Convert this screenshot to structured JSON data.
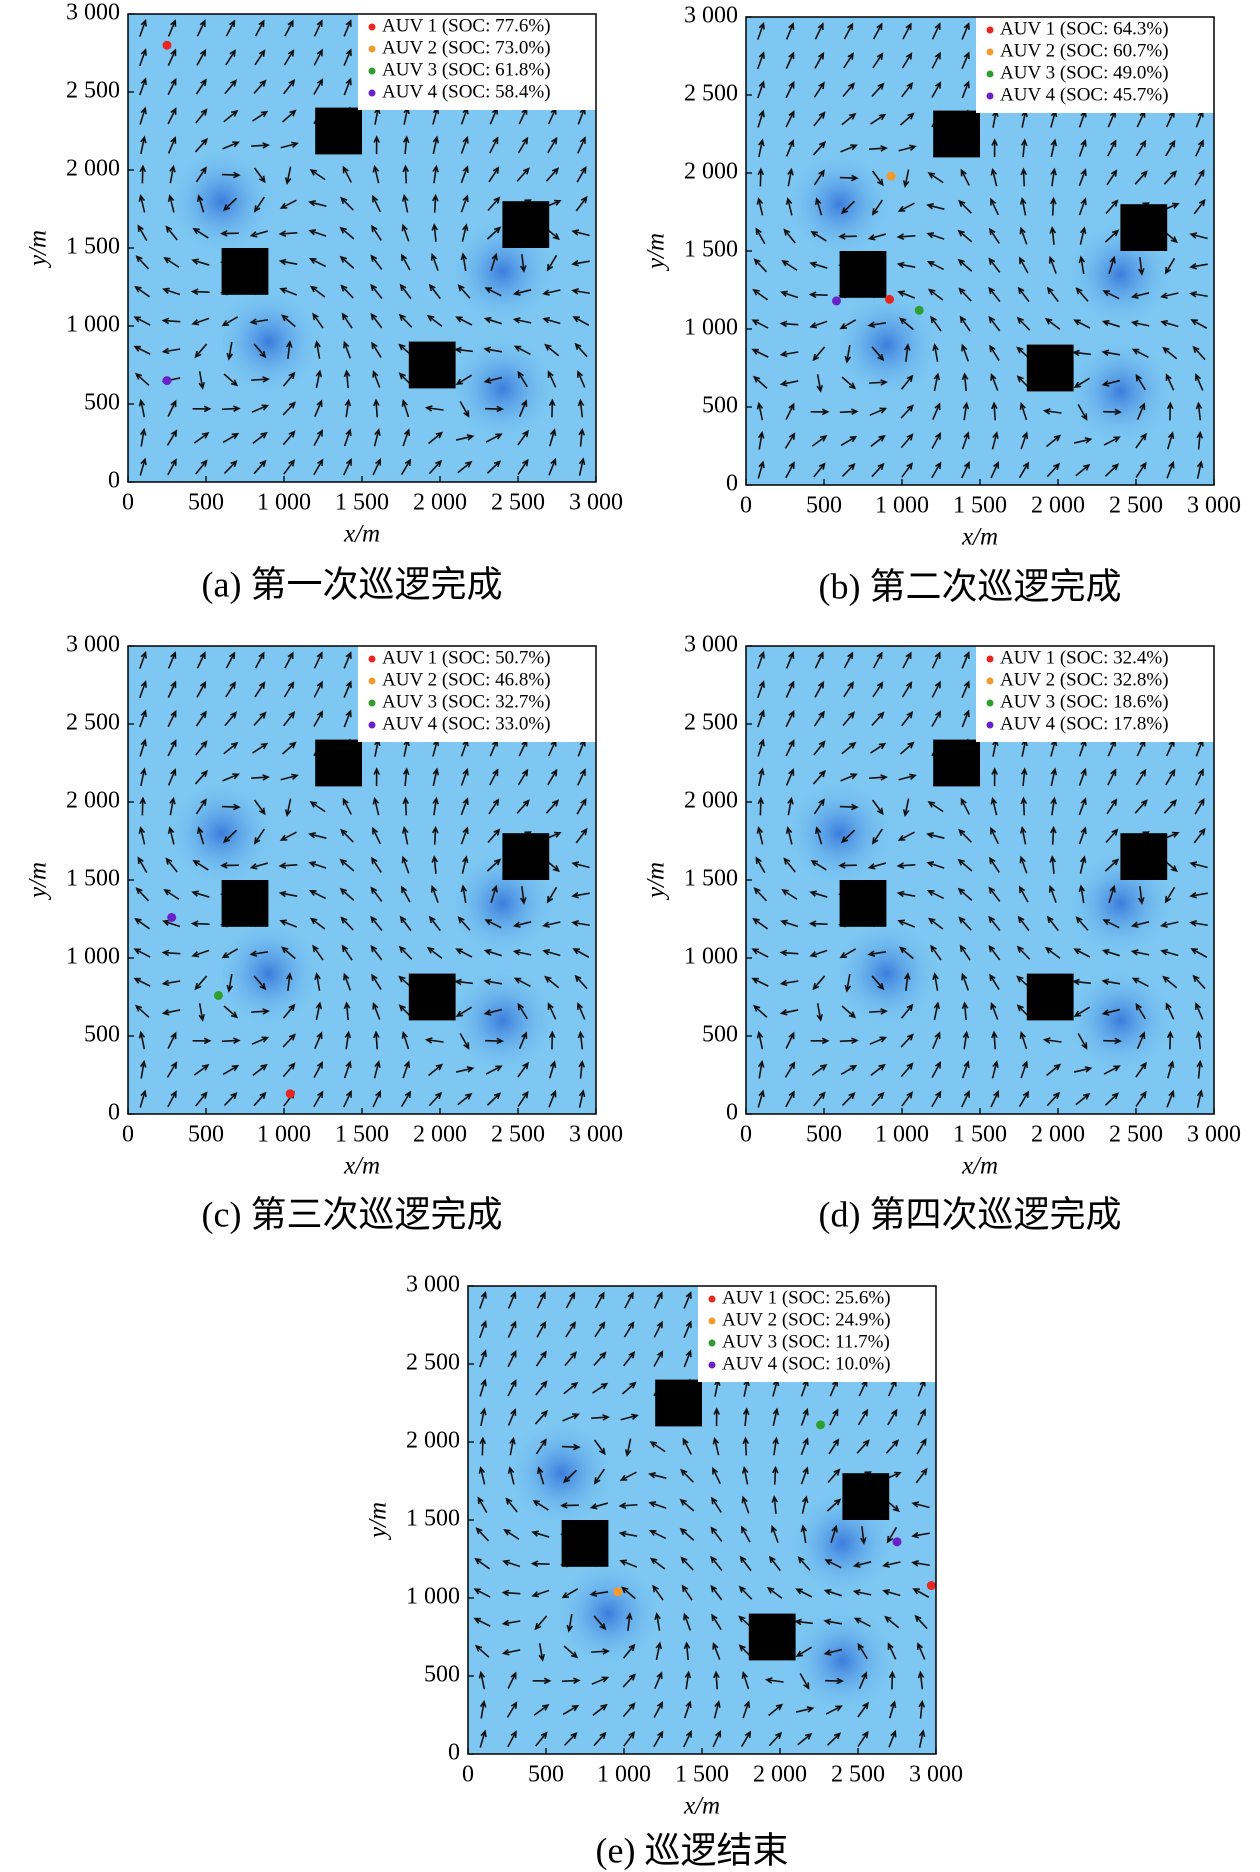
{
  "chart_data": [
    {
      "type": "scatter",
      "caption": "(a) 第一次巡逻完成",
      "xlabel": "x/m",
      "ylabel": "y/m",
      "xlim": [
        0,
        3000
      ],
      "ylim": [
        0,
        3000
      ],
      "xticks": [
        0,
        500,
        {
          "value": 1000,
          "label": "1 000"
        },
        {
          "value": 1500,
          "label": "1 500"
        },
        {
          "value": 2000,
          "label": "2 000"
        },
        {
          "value": 2500,
          "label": "2 500"
        },
        {
          "value": 3000,
          "label": "3 000"
        }
      ],
      "yticks": [
        0,
        500,
        {
          "value": 1000,
          "label": "1 000"
        },
        {
          "value": 1500,
          "label": "1 500"
        },
        {
          "value": 2000,
          "label": "2 000"
        },
        {
          "value": 2500,
          "label": "2 500"
        },
        {
          "value": 3000,
          "label": "3 000"
        }
      ],
      "obstacles": {
        "x": [
          750,
          1350,
          2550,
          1950
        ],
        "y": [
          1350,
          2250,
          1650,
          750
        ]
      },
      "vortices": {
        "x": [
          600,
          900,
          2400,
          2400
        ],
        "y": [
          1800,
          900,
          1350,
          600
        ]
      },
      "series": [
        {
          "name": "AUV 1 (SOC: 77.6%)",
          "color": "#e8261f",
          "x": [
            250
          ],
          "y": [
            2800
          ]
        },
        {
          "name": "AUV 2 (SOC: 73.0%)",
          "color": "#f39a2e",
          "x": [
            null
          ],
          "y": [
            null
          ]
        },
        {
          "name": "AUV 3 (SOC: 61.8%)",
          "color": "#2e9e2e",
          "x": [
            null
          ],
          "y": [
            null
          ]
        },
        {
          "name": "AUV 4 (SOC: 58.4%)",
          "color": "#6a22c8",
          "x": [
            250
          ],
          "y": [
            650
          ]
        }
      ]
    },
    {
      "type": "scatter",
      "caption": "(b) 第二次巡逻完成",
      "xlabel": "x/m",
      "ylabel": "y/m",
      "xlim": [
        0,
        3000
      ],
      "ylim": [
        0,
        3000
      ],
      "xticks": [
        0,
        500,
        {
          "value": 1000,
          "label": "1 000"
        },
        {
          "value": 1500,
          "label": "1 500"
        },
        {
          "value": 2000,
          "label": "2 000"
        },
        {
          "value": 2500,
          "label": "2 500"
        },
        {
          "value": 3000,
          "label": "3 000"
        }
      ],
      "yticks": [
        0,
        500,
        {
          "value": 1000,
          "label": "1 000"
        },
        {
          "value": 1500,
          "label": "1 500"
        },
        {
          "value": 2000,
          "label": "2 000"
        },
        {
          "value": 2500,
          "label": "2 500"
        },
        {
          "value": 3000,
          "label": "3 000"
        }
      ],
      "obstacles": {
        "x": [
          750,
          1350,
          2550,
          1950
        ],
        "y": [
          1350,
          2250,
          1650,
          750
        ]
      },
      "vortices": {
        "x": [
          600,
          900,
          2400,
          2400
        ],
        "y": [
          1800,
          900,
          1350,
          600
        ]
      },
      "series": [
        {
          "name": "AUV 1 (SOC: 64.3%)",
          "color": "#e8261f",
          "x": [
            920
          ],
          "y": [
            1190
          ]
        },
        {
          "name": "AUV 2 (SOC: 60.7%)",
          "color": "#f39a2e",
          "x": [
            930
          ],
          "y": [
            1980
          ]
        },
        {
          "name": "AUV 3 (SOC: 49.0%)",
          "color": "#2e9e2e",
          "x": [
            1110
          ],
          "y": [
            1120
          ]
        },
        {
          "name": "AUV 4 (SOC: 45.7%)",
          "color": "#6a22c8",
          "x": [
            580
          ],
          "y": [
            1180
          ]
        }
      ]
    },
    {
      "type": "scatter",
      "caption": "(c) 第三次巡逻完成",
      "xlabel": "x/m",
      "ylabel": "y/m",
      "xlim": [
        0,
        3000
      ],
      "ylim": [
        0,
        3000
      ],
      "xticks": [
        0,
        500,
        {
          "value": 1000,
          "label": "1 000"
        },
        {
          "value": 1500,
          "label": "1 500"
        },
        {
          "value": 2000,
          "label": "2 000"
        },
        {
          "value": 2500,
          "label": "2 500"
        },
        {
          "value": 3000,
          "label": "3 000"
        }
      ],
      "yticks": [
        0,
        500,
        {
          "value": 1000,
          "label": "1 000"
        },
        {
          "value": 1500,
          "label": "1 500"
        },
        {
          "value": 2000,
          "label": "2 000"
        },
        {
          "value": 2500,
          "label": "2 500"
        },
        {
          "value": 3000,
          "label": "3 000"
        }
      ],
      "obstacles": {
        "x": [
          750,
          1350,
          2550,
          1950
        ],
        "y": [
          1350,
          2250,
          1650,
          750
        ]
      },
      "vortices": {
        "x": [
          600,
          900,
          2400,
          2400
        ],
        "y": [
          1800,
          900,
          1350,
          600
        ]
      },
      "series": [
        {
          "name": "AUV 1 (SOC: 50.7%)",
          "color": "#e8261f",
          "x": [
            1040
          ],
          "y": [
            130
          ]
        },
        {
          "name": "AUV 2 (SOC: 46.8%)",
          "color": "#f39a2e",
          "x": [
            null
          ],
          "y": [
            null
          ]
        },
        {
          "name": "AUV 3 (SOC: 32.7%)",
          "color": "#2e9e2e",
          "x": [
            580
          ],
          "y": [
            760
          ]
        },
        {
          "name": "AUV 4 (SOC: 33.0%)",
          "color": "#6a22c8",
          "x": [
            280
          ],
          "y": [
            1260
          ]
        }
      ]
    },
    {
      "type": "scatter",
      "caption": "(d) 第四次巡逻完成",
      "xlabel": "x/m",
      "ylabel": "y/m",
      "xlim": [
        0,
        3000
      ],
      "ylim": [
        0,
        3000
      ],
      "xticks": [
        0,
        500,
        {
          "value": 1000,
          "label": "1 000"
        },
        {
          "value": 1500,
          "label": "1 500"
        },
        {
          "value": 2000,
          "label": "2 000"
        },
        {
          "value": 2500,
          "label": "2 500"
        },
        {
          "value": 3000,
          "label": "3 000"
        }
      ],
      "yticks": [
        0,
        500,
        {
          "value": 1000,
          "label": "1 000"
        },
        {
          "value": 1500,
          "label": "1 500"
        },
        {
          "value": 2000,
          "label": "2 000"
        },
        {
          "value": 2500,
          "label": "2 500"
        },
        {
          "value": 3000,
          "label": "3 000"
        }
      ],
      "obstacles": {
        "x": [
          750,
          1350,
          2550,
          1950
        ],
        "y": [
          1350,
          2250,
          1650,
          750
        ]
      },
      "vortices": {
        "x": [
          600,
          900,
          2400,
          2400
        ],
        "y": [
          1800,
          900,
          1350,
          600
        ]
      },
      "series": [
        {
          "name": "AUV 1 (SOC: 32.4%)",
          "color": "#e8261f",
          "x": [
            null
          ],
          "y": [
            null
          ]
        },
        {
          "name": "AUV 2 (SOC: 32.8%)",
          "color": "#f39a2e",
          "x": [
            null
          ],
          "y": [
            null
          ]
        },
        {
          "name": "AUV 3 (SOC: 18.6%)",
          "color": "#2e9e2e",
          "x": [
            null
          ],
          "y": [
            null
          ]
        },
        {
          "name": "AUV 4 (SOC: 17.8%)",
          "color": "#6a22c8",
          "x": [
            null
          ],
          "y": [
            null
          ]
        }
      ]
    },
    {
      "type": "scatter",
      "caption": "(e) 巡逻结束",
      "xlabel": "x/m",
      "ylabel": "y/m",
      "xlim": [
        0,
        3000
      ],
      "ylim": [
        0,
        3000
      ],
      "xticks": [
        0,
        500,
        {
          "value": 1000,
          "label": "1 000"
        },
        {
          "value": 1500,
          "label": "1 500"
        },
        {
          "value": 2000,
          "label": "2 000"
        },
        {
          "value": 2500,
          "label": "2 500"
        },
        {
          "value": 3000,
          "label": "3 000"
        }
      ],
      "yticks": [
        0,
        500,
        {
          "value": 1000,
          "label": "1 000"
        },
        {
          "value": 1500,
          "label": "1 500"
        },
        {
          "value": 2000,
          "label": "2 000"
        },
        {
          "value": 2500,
          "label": "2 500"
        },
        {
          "value": 3000,
          "label": "3 000"
        }
      ],
      "obstacles": {
        "x": [
          750,
          1350,
          2550,
          1950
        ],
        "y": [
          1350,
          2250,
          1650,
          750
        ]
      },
      "vortices": {
        "x": [
          600,
          900,
          2400,
          2400
        ],
        "y": [
          1800,
          900,
          1350,
          600
        ]
      },
      "series": [
        {
          "name": "AUV 1 (SOC: 25.6%)",
          "color": "#e8261f",
          "x": [
            2970
          ],
          "y": [
            1080
          ]
        },
        {
          "name": "AUV 2 (SOC: 24.9%)",
          "color": "#f39a2e",
          "x": [
            960
          ],
          "y": [
            1040
          ]
        },
        {
          "name": "AUV 3 (SOC: 11.7%)",
          "color": "#2e9e2e",
          "x": [
            2260
          ],
          "y": [
            2110
          ]
        },
        {
          "name": "AUV 4 (SOC: 10.0%)",
          "color": "#6a22c8",
          "x": [
            2750
          ],
          "y": [
            1360
          ]
        }
      ]
    }
  ]
}
